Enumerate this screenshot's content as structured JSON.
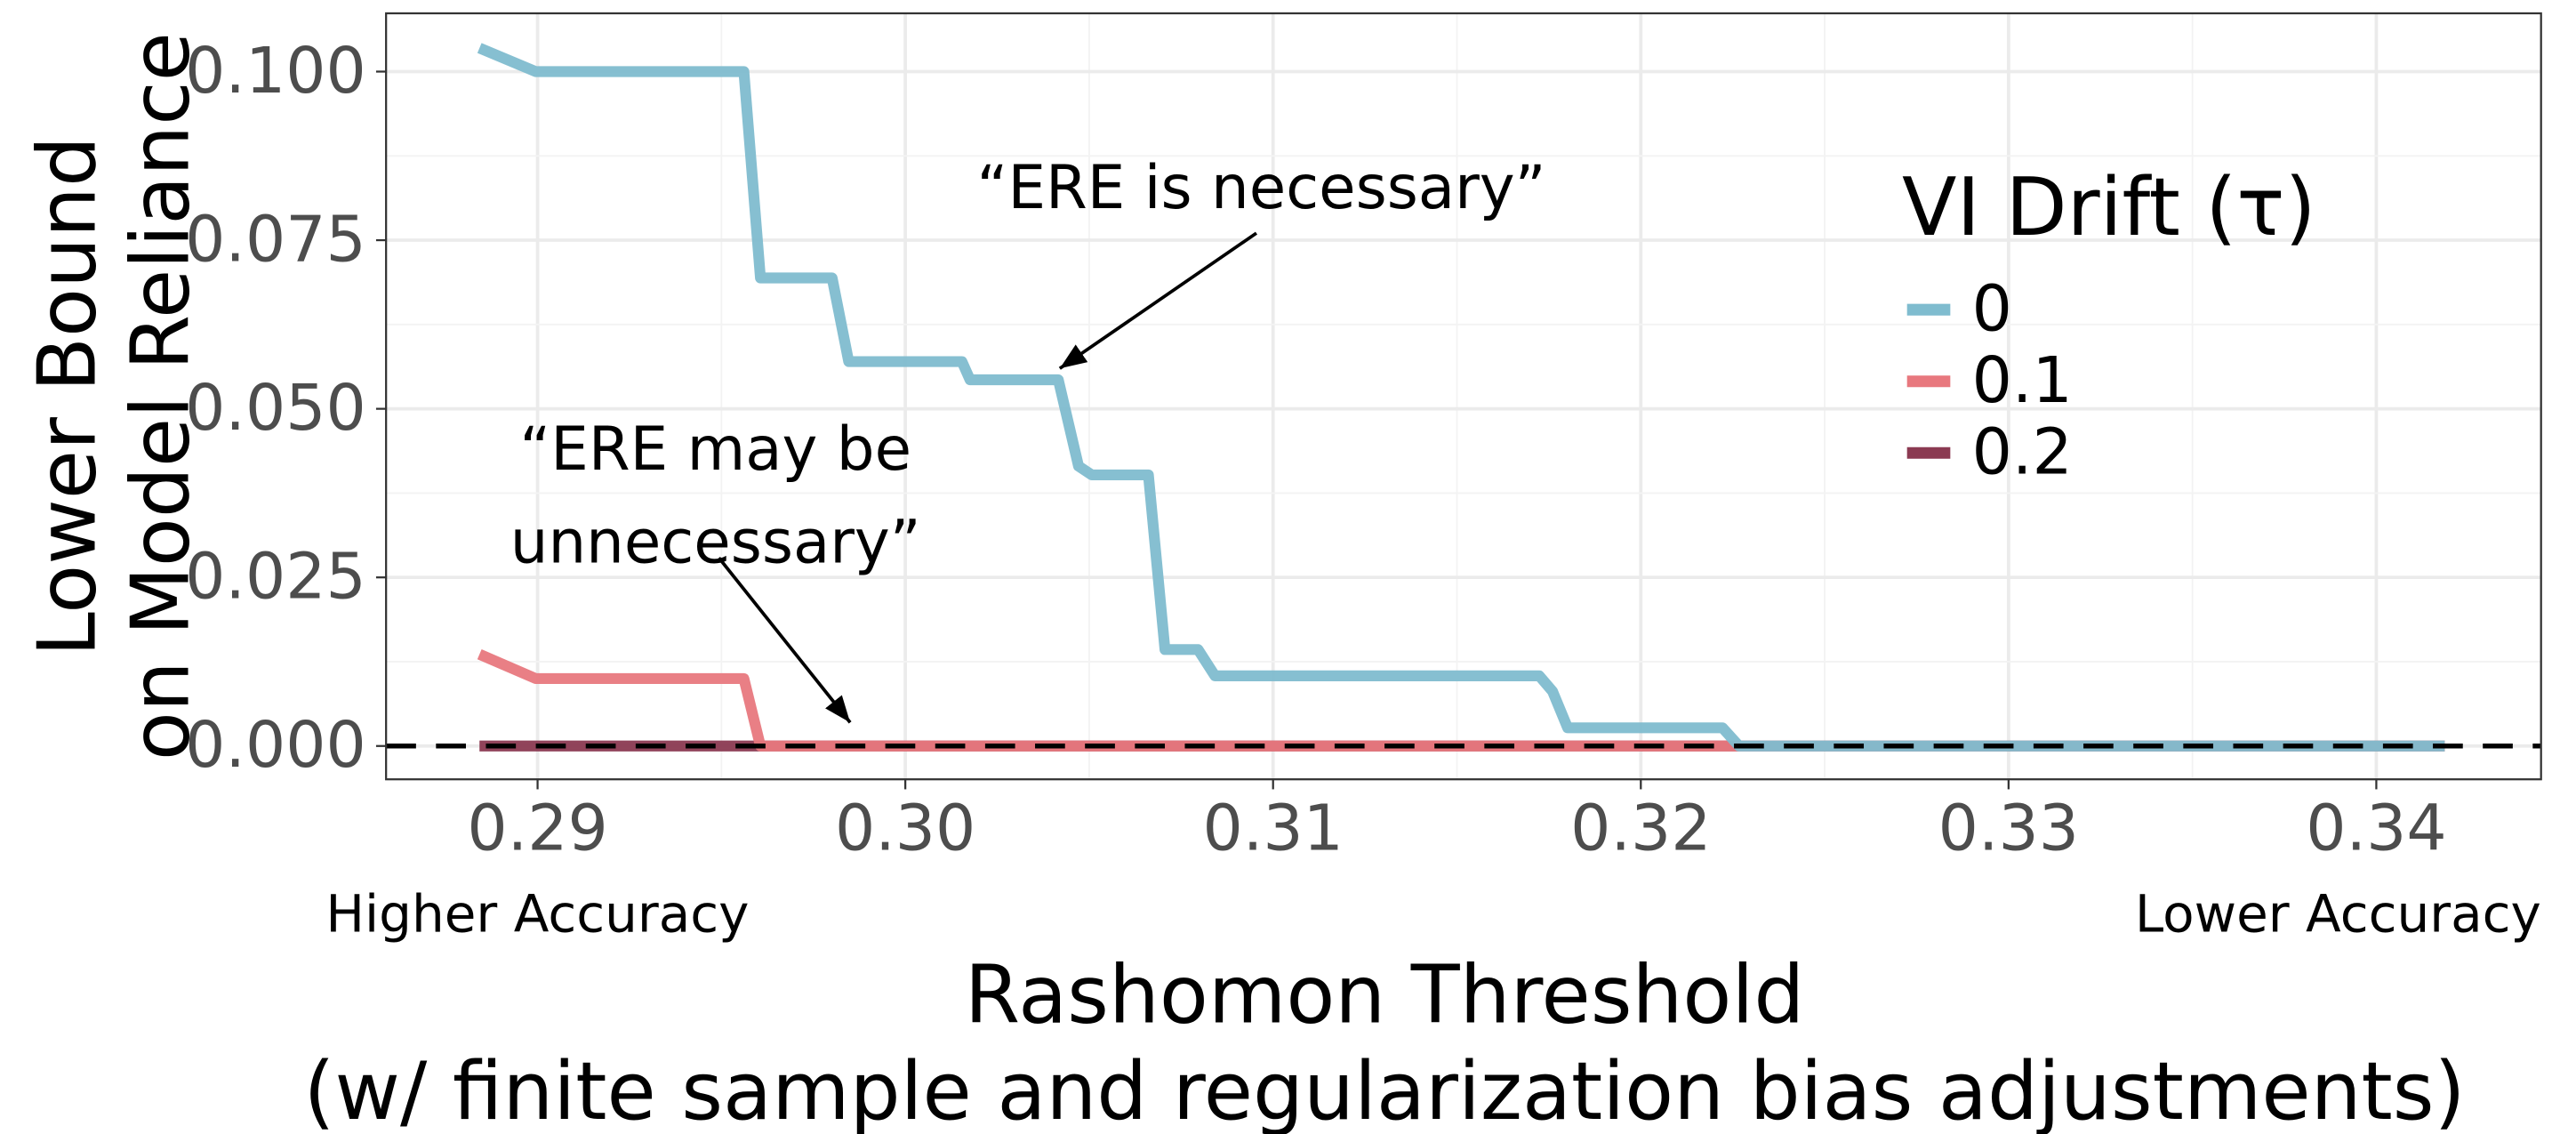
{
  "chart_data": {
    "type": "line",
    "y_title": [
      "Lower Bound",
      "on Model Reliance"
    ],
    "x_title": [
      "Rashomon Threshold",
      "(w/ finite sample and regularization bias adjustments)"
    ],
    "x_end_labels": [
      "Higher Accuracy",
      "Lower Accuracy"
    ],
    "legend_title": "VI Drift (τ)",
    "legend_position": "upper right",
    "grid": true,
    "xlim": [
      0.28588,
      0.34448
    ],
    "ylim": [
      -0.00494,
      0.10864
    ],
    "xticks": [
      {
        "value": 0.29,
        "label": "0.29"
      },
      {
        "value": 0.3,
        "label": "0.30"
      },
      {
        "value": 0.31,
        "label": "0.31"
      },
      {
        "value": 0.32,
        "label": "0.32"
      },
      {
        "value": 0.33,
        "label": "0.33"
      },
      {
        "value": 0.34,
        "label": "0.34"
      }
    ],
    "yticks": [
      {
        "value": 0,
        "label": "0.000"
      },
      {
        "value": 0.025,
        "label": "0.025"
      },
      {
        "value": 0.05,
        "label": "0.050"
      },
      {
        "value": 0.075,
        "label": "0.075"
      },
      {
        "value": 0.1,
        "label": "0.100"
      }
    ],
    "reference_line": {
      "y": 0,
      "style": "dashed",
      "color": "#000000"
    },
    "series": [
      {
        "name": "0.2",
        "color": "#8b3a52",
        "x": [
          0.28842,
          0.34186
        ],
        "values": [
          0,
          0
        ]
      },
      {
        "name": "0.1",
        "color": "#e8787e",
        "x": [
          0.28842,
          0.28995,
          0.29561,
          0.29606,
          0.34186
        ],
        "values": [
          0.0136,
          0.01,
          0.01,
          0,
          0
        ]
      },
      {
        "name": "0",
        "color": "#7fbccf",
        "x": [
          0.28842,
          0.28995,
          0.29561,
          0.29606,
          0.29801,
          0.29846,
          0.30154,
          0.30176,
          0.30416,
          0.30471,
          0.30507,
          0.30661,
          0.30706,
          0.30796,
          0.30842,
          0.31724,
          0.3176,
          0.31801,
          0.32222,
          0.32267,
          0.34186
        ],
        "values": [
          0.1035,
          0.1,
          0.1,
          0.0694,
          0.0694,
          0.057,
          0.057,
          0.0543,
          0.0543,
          0.0415,
          0.0402,
          0.0402,
          0.0143,
          0.0143,
          0.0104,
          0.0104,
          0.0081,
          0.0027,
          0.0027,
          0,
          0
        ]
      }
    ],
    "legend_order": [
      2,
      1,
      0
    ],
    "annotations": [
      {
        "lines": [
          "“ERE is necessary”"
        ],
        "x": 0.3042,
        "y": 0.0545
      },
      {
        "lines": [
          "“ERE may be",
          "unnecessary”"
        ],
        "x": 0.2985,
        "y": 0.002
      }
    ]
  }
}
